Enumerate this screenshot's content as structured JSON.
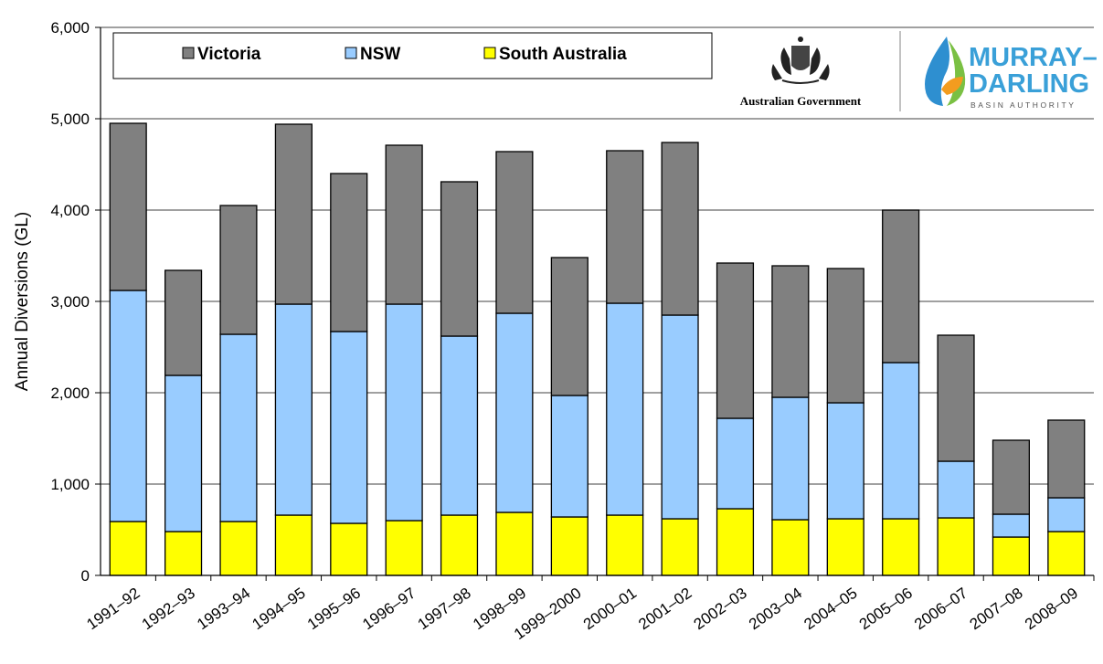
{
  "chart_data": {
    "type": "bar",
    "stacked": true,
    "title": "",
    "xlabel": "",
    "ylabel": "Annual Diversions (GL)",
    "ylim": [
      0,
      6000
    ],
    "yticks": [
      "0",
      "1,000",
      "2,000",
      "3,000",
      "4,000",
      "5,000",
      "6,000"
    ],
    "grid": true,
    "legend_position": "top-left",
    "categories": [
      "1991–92",
      "1992–93",
      "1993–94",
      "1994–95",
      "1995–96",
      "1996–97",
      "1997–98",
      "1998–99",
      "1999–2000",
      "2000–01",
      "2001–02",
      "2002–03",
      "2003–04",
      "2004–05",
      "2005–06",
      "2006–07",
      "2007–08",
      "2008–09"
    ],
    "series": [
      {
        "name": "South Australia",
        "color": "#ffff00",
        "values": [
          590,
          480,
          590,
          660,
          570,
          600,
          660,
          690,
          640,
          660,
          620,
          730,
          610,
          620,
          620,
          630,
          420,
          480
        ]
      },
      {
        "name": "NSW",
        "color": "#99ccff",
        "values": [
          2530,
          1710,
          2050,
          2310,
          2100,
          2370,
          1960,
          2180,
          1330,
          2320,
          2230,
          990,
          1340,
          1270,
          1710,
          620,
          250,
          370
        ]
      },
      {
        "name": "Victoria",
        "color": "#808080",
        "values": [
          1830,
          1150,
          1410,
          1970,
          1730,
          1740,
          1690,
          1770,
          1510,
          1670,
          1890,
          1700,
          1440,
          1470,
          1670,
          1380,
          810,
          850
        ]
      }
    ],
    "legend_order": [
      "Victoria",
      "NSW",
      "South Australia"
    ]
  },
  "logos": {
    "gov_text": "Australian Government",
    "mdba_line1": "MURRAY–",
    "mdba_line2": "DARLING",
    "mdba_line3": "BASIN AUTHORITY"
  }
}
